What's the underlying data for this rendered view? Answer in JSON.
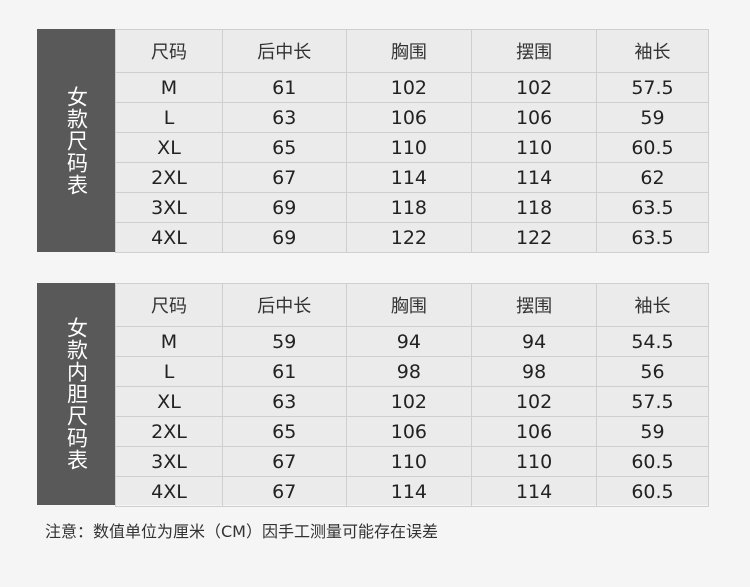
{
  "tables": [
    {
      "title": "女款尺码表",
      "headers": [
        "尺码",
        "后中长",
        "胸围",
        "摆围",
        "袖长"
      ],
      "rows": [
        [
          "M",
          "61",
          "102",
          "102",
          "57.5"
        ],
        [
          "L",
          "63",
          "106",
          "106",
          "59"
        ],
        [
          "XL",
          "65",
          "110",
          "110",
          "60.5"
        ],
        [
          "2XL",
          "67",
          "114",
          "114",
          "62"
        ],
        [
          "3XL",
          "69",
          "118",
          "118",
          "63.5"
        ],
        [
          "4XL",
          "69",
          "122",
          "122",
          "63.5"
        ]
      ]
    },
    {
      "title": "女款内胆尺码表",
      "headers": [
        "尺码",
        "后中长",
        "胸围",
        "摆围",
        "袖长"
      ],
      "rows": [
        [
          "M",
          "59",
          "94",
          "94",
          "54.5"
        ],
        [
          "L",
          "61",
          "98",
          "98",
          "56"
        ],
        [
          "XL",
          "63",
          "102",
          "102",
          "57.5"
        ],
        [
          "2XL",
          "65",
          "106",
          "106",
          "59"
        ],
        [
          "3XL",
          "67",
          "110",
          "110",
          "60.5"
        ],
        [
          "4XL",
          "67",
          "114",
          "114",
          "60.5"
        ]
      ]
    }
  ],
  "note": "注意：数值单位为厘米（CM）因手工测量可能存在误差"
}
